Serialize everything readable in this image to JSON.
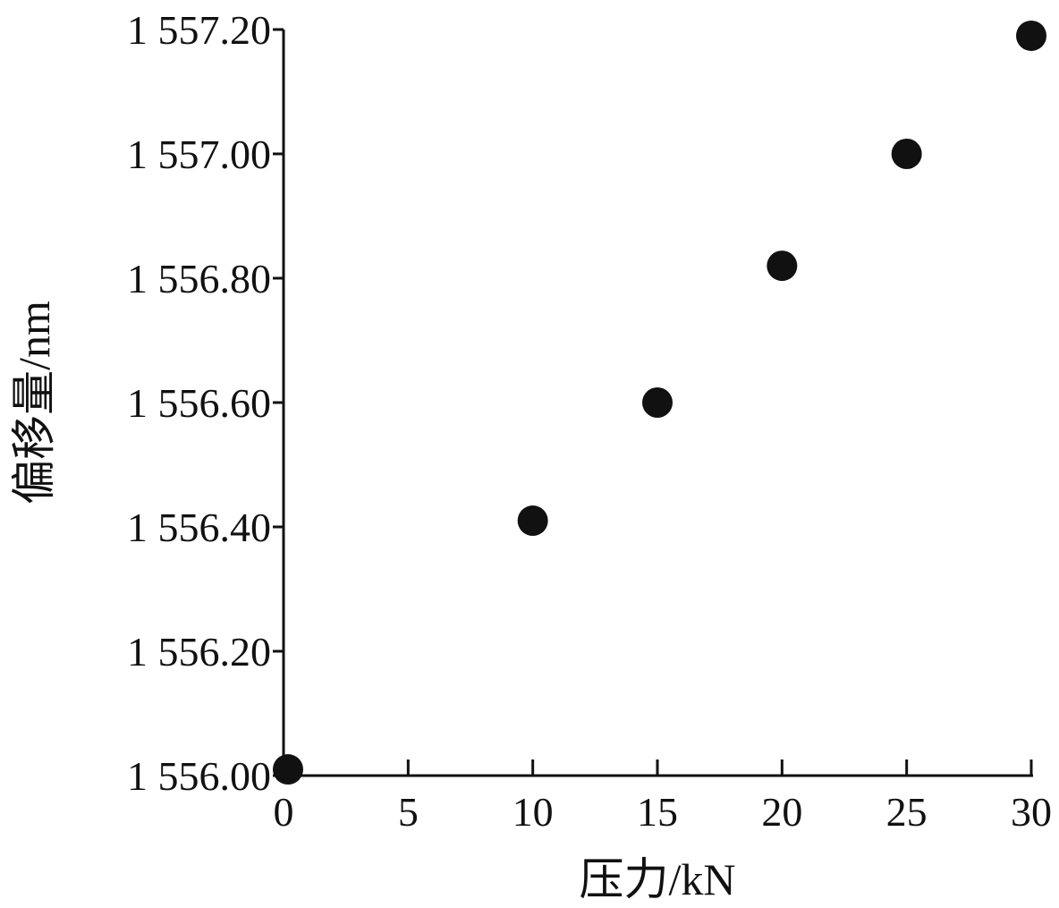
{
  "chart_data": {
    "type": "scatter",
    "title": "",
    "xlabel": "压力/kN",
    "ylabel": "偏移量/nm",
    "xlim": [
      0,
      30
    ],
    "ylim": [
      1556.0,
      1557.2
    ],
    "x_ticks": [
      0,
      5,
      10,
      15,
      20,
      25,
      30
    ],
    "x_tick_labels": [
      "0",
      "5",
      "10",
      "15",
      "20",
      "25",
      "30"
    ],
    "y_ticks": [
      1556.0,
      1556.2,
      1556.4,
      1556.6,
      1556.8,
      1557.0,
      1557.2
    ],
    "y_tick_labels": [
      "1 556.00",
      "1 556.20",
      "1 556.40",
      "1 556.60",
      "1 556.80",
      "1 557.00",
      "1 557.20"
    ],
    "grid": false,
    "marker_color": "#111111",
    "series": [
      {
        "x": [
          0,
          10,
          15,
          20,
          25,
          30
        ],
        "y": [
          1556.01,
          1556.41,
          1556.6,
          1556.82,
          1557.0,
          1557.19
        ]
      }
    ]
  }
}
